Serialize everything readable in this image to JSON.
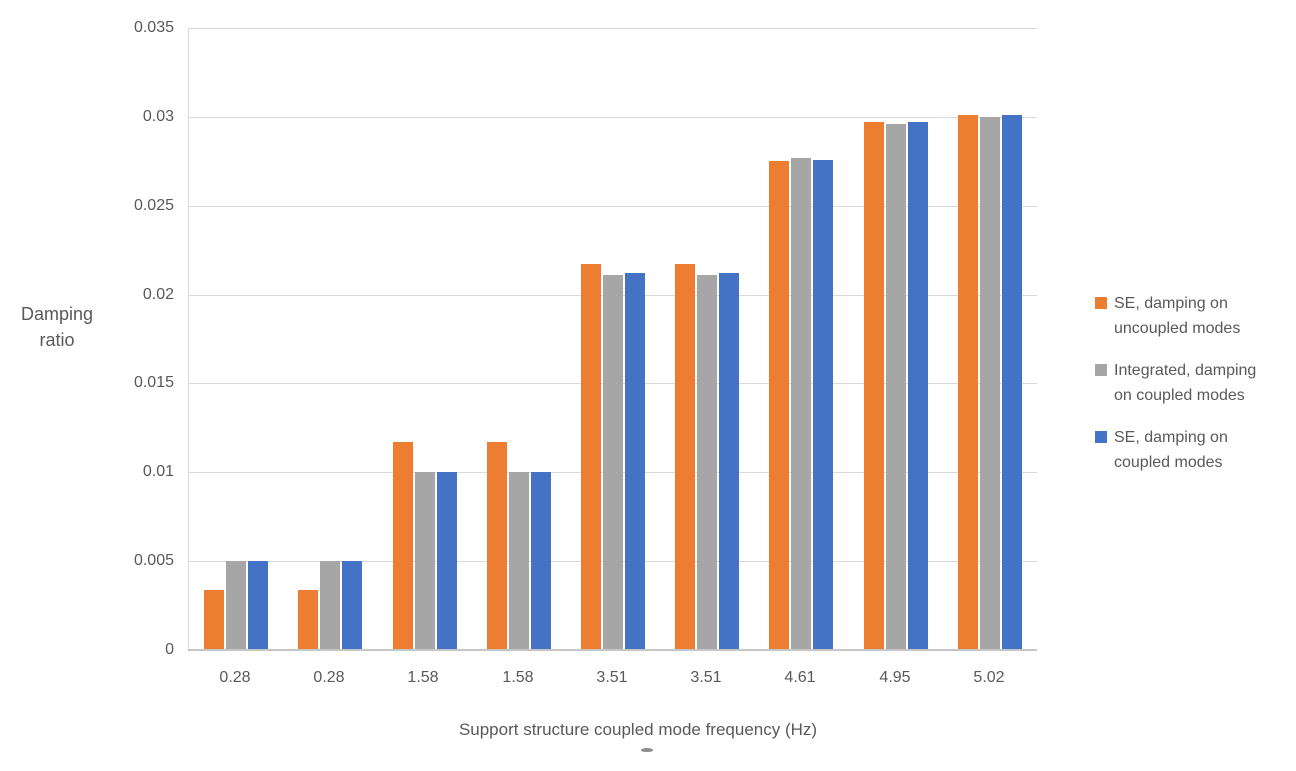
{
  "chart_data": {
    "type": "bar",
    "title": "",
    "categories": [
      "0.28",
      "0.28",
      "1.58",
      "1.58",
      "3.51",
      "3.51",
      "4.61",
      "4.95",
      "5.02"
    ],
    "series": [
      {
        "name": "SE, damping on uncoupled modes",
        "legend_lines": [
          "SE, damping on",
          "uncoupled modes"
        ],
        "color": "#ED7D31",
        "values": [
          0.0034,
          0.0034,
          0.0117,
          0.0117,
          0.0217,
          0.0217,
          0.0275,
          0.0297,
          0.0301
        ]
      },
      {
        "name": "Integrated, damping on coupled modes",
        "legend_lines": [
          "Integrated, damping",
          "on coupled modes"
        ],
        "color": "#A6A6A6",
        "values": [
          0.005,
          0.005,
          0.01,
          0.01,
          0.0211,
          0.0211,
          0.0277,
          0.0296,
          0.03
        ]
      },
      {
        "name": "SE, damping on coupled modes",
        "legend_lines": [
          "SE, damping on",
          "coupled modes"
        ],
        "color": "#4472C4",
        "values": [
          0.005,
          0.005,
          0.01,
          0.01,
          0.0212,
          0.0212,
          0.0276,
          0.0297,
          0.0301
        ]
      }
    ],
    "xlabel": "Support structure coupled mode frequency (Hz)",
    "ylabel_lines": [
      "Damping",
      "ratio"
    ],
    "ylim": [
      0,
      0.035
    ],
    "ytick_step": 0.005,
    "ytick_labels": [
      "0",
      "0.005",
      "0.01",
      "0.015",
      "0.02",
      "0.025",
      "0.03",
      "0.035"
    ],
    "grid": "horizontal",
    "legend_position": "right",
    "colors": {
      "gridline": "#D9D9D9",
      "axis_line": "#C6C6C6",
      "text": "#595959"
    }
  }
}
